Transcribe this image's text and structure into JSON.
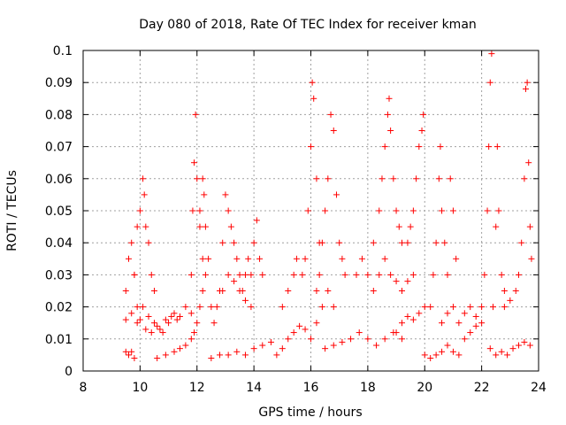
{
  "chart_data": {
    "type": "scatter",
    "title": "Day 080 of 2018, Rate Of TEC Index for receiver kman",
    "xlabel": "GPS time / hours",
    "ylabel": "ROTI / TECUs",
    "xlim": [
      8,
      24
    ],
    "ylim": [
      0,
      0.1
    ],
    "xticks": [
      8,
      10,
      12,
      14,
      16,
      18,
      20,
      22,
      24
    ],
    "yticks": [
      0,
      0.01,
      0.02,
      0.03,
      0.04,
      0.05,
      0.06,
      0.07,
      0.08,
      0.09,
      0.1
    ],
    "xtick_labels": [
      "8",
      "10",
      "12",
      "14",
      "16",
      "18",
      "20",
      "22",
      "24"
    ],
    "ytick_labels": [
      "0",
      "0.01",
      "0.02",
      "0.03",
      "0.04",
      "0.05",
      "0.06",
      "0.07",
      "0.08",
      "0.09",
      "0.1"
    ],
    "grid": true,
    "marker": "+",
    "color": "#ff0000",
    "series": [
      {
        "name": "ROTI",
        "tracks": [
          [
            [
              9.5,
              0.006
            ],
            [
              9.6,
              0.005
            ],
            [
              9.7,
              0.006
            ],
            [
              9.8,
              0.004
            ]
          ],
          [
            [
              9.5,
              0.025
            ],
            [
              9.6,
              0.035
            ],
            [
              9.7,
              0.04
            ],
            [
              9.8,
              0.03
            ],
            [
              9.9,
              0.02
            ],
            [
              10.0,
              0.016
            ],
            [
              10.2,
              0.013
            ],
            [
              10.4,
              0.012
            ],
            [
              10.6,
              0.014
            ],
            [
              10.8,
              0.012
            ],
            [
              11.0,
              0.015
            ],
            [
              11.2,
              0.018
            ],
            [
              11.4,
              0.017
            ],
            [
              11.6,
              0.02
            ],
            [
              11.8,
              0.018
            ]
          ],
          [
            [
              9.5,
              0.016
            ],
            [
              9.7,
              0.018
            ],
            [
              9.9,
              0.015
            ],
            [
              10.1,
              0.02
            ],
            [
              10.3,
              0.017
            ],
            [
              10.5,
              0.015
            ],
            [
              10.7,
              0.013
            ],
            [
              10.9,
              0.016
            ],
            [
              11.1,
              0.017
            ],
            [
              11.3,
              0.016
            ]
          ],
          [
            [
              9.8,
              0.03
            ],
            [
              9.9,
              0.045
            ],
            [
              10.0,
              0.05
            ],
            [
              10.1,
              0.06
            ],
            [
              10.15,
              0.055
            ],
            [
              10.2,
              0.045
            ],
            [
              10.3,
              0.04
            ],
            [
              10.4,
              0.03
            ],
            [
              10.5,
              0.025
            ]
          ],
          [
            [
              10.6,
              0.004
            ],
            [
              10.9,
              0.005
            ],
            [
              11.2,
              0.006
            ],
            [
              11.4,
              0.007
            ],
            [
              11.6,
              0.008
            ],
            [
              11.8,
              0.01
            ],
            [
              11.9,
              0.012
            ],
            [
              12.0,
              0.015
            ],
            [
              12.1,
              0.02
            ],
            [
              12.2,
              0.025
            ]
          ],
          [
            [
              11.8,
              0.03
            ],
            [
              11.85,
              0.05
            ],
            [
              11.9,
              0.065
            ],
            [
              11.95,
              0.08
            ],
            [
              12.0,
              0.06
            ],
            [
              12.1,
              0.045
            ],
            [
              12.2,
              0.035
            ],
            [
              12.3,
              0.03
            ]
          ],
          [
            [
              12.1,
              0.05
            ],
            [
              12.2,
              0.06
            ],
            [
              12.25,
              0.055
            ],
            [
              12.3,
              0.045
            ],
            [
              12.4,
              0.035
            ],
            [
              12.5,
              0.02
            ],
            [
              12.6,
              0.015
            ]
          ],
          [
            [
              12.5,
              0.004
            ],
            [
              12.8,
              0.005
            ],
            [
              13.1,
              0.005
            ],
            [
              13.4,
              0.006
            ],
            [
              13.7,
              0.005
            ],
            [
              14.0,
              0.007
            ],
            [
              14.3,
              0.008
            ],
            [
              14.6,
              0.009
            ]
          ],
          [
            [
              12.8,
              0.025
            ],
            [
              12.9,
              0.04
            ],
            [
              13.0,
              0.055
            ],
            [
              13.1,
              0.05
            ],
            [
              13.2,
              0.045
            ],
            [
              13.3,
              0.04
            ],
            [
              13.4,
              0.035
            ],
            [
              13.5,
              0.03
            ],
            [
              13.6,
              0.025
            ],
            [
              13.7,
              0.03
            ],
            [
              13.8,
              0.035
            ],
            [
              13.9,
              0.03
            ],
            [
              14.0,
              0.04
            ],
            [
              14.1,
              0.047
            ],
            [
              14.2,
              0.035
            ],
            [
              14.3,
              0.03
            ]
          ],
          [
            [
              12.7,
              0.02
            ],
            [
              12.9,
              0.025
            ],
            [
              13.1,
              0.03
            ],
            [
              13.3,
              0.028
            ],
            [
              13.5,
              0.025
            ],
            [
              13.7,
              0.022
            ],
            [
              13.9,
              0.02
            ]
          ],
          [
            [
              14.8,
              0.005
            ],
            [
              15.0,
              0.007
            ],
            [
              15.2,
              0.01
            ],
            [
              15.4,
              0.012
            ],
            [
              15.6,
              0.014
            ],
            [
              15.8,
              0.013
            ]
          ],
          [
            [
              15.0,
              0.02
            ],
            [
              15.2,
              0.025
            ],
            [
              15.4,
              0.03
            ],
            [
              15.5,
              0.035
            ],
            [
              15.7,
              0.03
            ],
            [
              15.8,
              0.035
            ],
            [
              15.9,
              0.05
            ],
            [
              16.0,
              0.07
            ],
            [
              16.05,
              0.09
            ],
            [
              16.1,
              0.085
            ],
            [
              16.2,
              0.06
            ],
            [
              16.3,
              0.04
            ]
          ],
          [
            [
              16.2,
              0.025
            ],
            [
              16.3,
              0.03
            ],
            [
              16.4,
              0.04
            ],
            [
              16.5,
              0.05
            ],
            [
              16.6,
              0.06
            ],
            [
              16.7,
              0.08
            ],
            [
              16.8,
              0.075
            ],
            [
              16.9,
              0.055
            ],
            [
              17.0,
              0.04
            ],
            [
              17.1,
              0.035
            ],
            [
              17.2,
              0.03
            ]
          ],
          [
            [
              16.0,
              0.01
            ],
            [
              16.2,
              0.015
            ],
            [
              16.4,
              0.02
            ],
            [
              16.6,
              0.025
            ],
            [
              16.8,
              0.02
            ]
          ],
          [
            [
              16.5,
              0.007
            ],
            [
              16.8,
              0.008
            ],
            [
              17.1,
              0.009
            ],
            [
              17.4,
              0.01
            ],
            [
              17.7,
              0.012
            ],
            [
              18.0,
              0.01
            ],
            [
              18.3,
              0.008
            ],
            [
              18.6,
              0.01
            ],
            [
              18.9,
              0.012
            ],
            [
              19.2,
              0.01
            ]
          ],
          [
            [
              17.6,
              0.03
            ],
            [
              17.8,
              0.035
            ],
            [
              18.0,
              0.03
            ],
            [
              18.2,
              0.04
            ],
            [
              18.4,
              0.05
            ],
            [
              18.5,
              0.06
            ],
            [
              18.6,
              0.07
            ],
            [
              18.7,
              0.08
            ],
            [
              18.75,
              0.085
            ],
            [
              18.8,
              0.075
            ],
            [
              18.9,
              0.06
            ],
            [
              19.0,
              0.05
            ],
            [
              19.1,
              0.045
            ],
            [
              19.2,
              0.04
            ]
          ],
          [
            [
              18.2,
              0.025
            ],
            [
              18.4,
              0.03
            ],
            [
              18.6,
              0.035
            ],
            [
              18.8,
              0.03
            ],
            [
              19.0,
              0.028
            ],
            [
              19.2,
              0.025
            ],
            [
              19.4,
              0.028
            ],
            [
              19.6,
              0.03
            ]
          ],
          [
            [
              19.4,
              0.04
            ],
            [
              19.5,
              0.045
            ],
            [
              19.6,
              0.05
            ],
            [
              19.7,
              0.06
            ],
            [
              19.8,
              0.07
            ],
            [
              19.9,
              0.075
            ],
            [
              19.95,
              0.08
            ]
          ],
          [
            [
              19.0,
              0.012
            ],
            [
              19.2,
              0.015
            ],
            [
              19.4,
              0.017
            ],
            [
              19.6,
              0.016
            ],
            [
              19.8,
              0.018
            ],
            [
              20.0,
              0.02
            ]
          ],
          [
            [
              20.0,
              0.005
            ],
            [
              20.2,
              0.004
            ],
            [
              20.4,
              0.005
            ],
            [
              20.6,
              0.006
            ],
            [
              20.8,
              0.008
            ],
            [
              21.0,
              0.006
            ],
            [
              21.2,
              0.005
            ]
          ],
          [
            [
              20.2,
              0.02
            ],
            [
              20.3,
              0.03
            ],
            [
              20.4,
              0.04
            ],
            [
              20.5,
              0.06
            ],
            [
              20.55,
              0.07
            ],
            [
              20.6,
              0.05
            ],
            [
              20.7,
              0.04
            ],
            [
              20.8,
              0.03
            ],
            [
              20.9,
              0.06
            ],
            [
              21.0,
              0.05
            ],
            [
              21.1,
              0.035
            ]
          ],
          [
            [
              20.6,
              0.015
            ],
            [
              20.8,
              0.018
            ],
            [
              21.0,
              0.02
            ],
            [
              21.2,
              0.015
            ],
            [
              21.4,
              0.018
            ],
            [
              21.6,
              0.02
            ],
            [
              21.8,
              0.017
            ],
            [
              22.0,
              0.015
            ]
          ],
          [
            [
              21.4,
              0.01
            ],
            [
              21.6,
              0.012
            ],
            [
              21.8,
              0.014
            ],
            [
              22.0,
              0.02
            ],
            [
              22.1,
              0.03
            ],
            [
              22.2,
              0.05
            ],
            [
              22.25,
              0.07
            ],
            [
              22.3,
              0.09
            ],
            [
              22.35,
              0.099
            ]
          ],
          [
            [
              22.4,
              0.02
            ],
            [
              22.5,
              0.045
            ],
            [
              22.55,
              0.07
            ],
            [
              22.6,
              0.05
            ],
            [
              22.7,
              0.03
            ],
            [
              22.8,
              0.025
            ]
          ],
          [
            [
              22.3,
              0.007
            ],
            [
              22.5,
              0.005
            ],
            [
              22.7,
              0.006
            ],
            [
              22.9,
              0.005
            ],
            [
              23.1,
              0.007
            ],
            [
              23.3,
              0.008
            ],
            [
              23.5,
              0.009
            ],
            [
              23.7,
              0.008
            ]
          ],
          [
            [
              22.8,
              0.02
            ],
            [
              23.0,
              0.022
            ],
            [
              23.2,
              0.025
            ],
            [
              23.3,
              0.03
            ],
            [
              23.4,
              0.04
            ],
            [
              23.5,
              0.06
            ],
            [
              23.55,
              0.088
            ],
            [
              23.6,
              0.09
            ],
            [
              23.65,
              0.065
            ],
            [
              23.7,
              0.045
            ],
            [
              23.75,
              0.035
            ]
          ]
        ]
      }
    ]
  }
}
